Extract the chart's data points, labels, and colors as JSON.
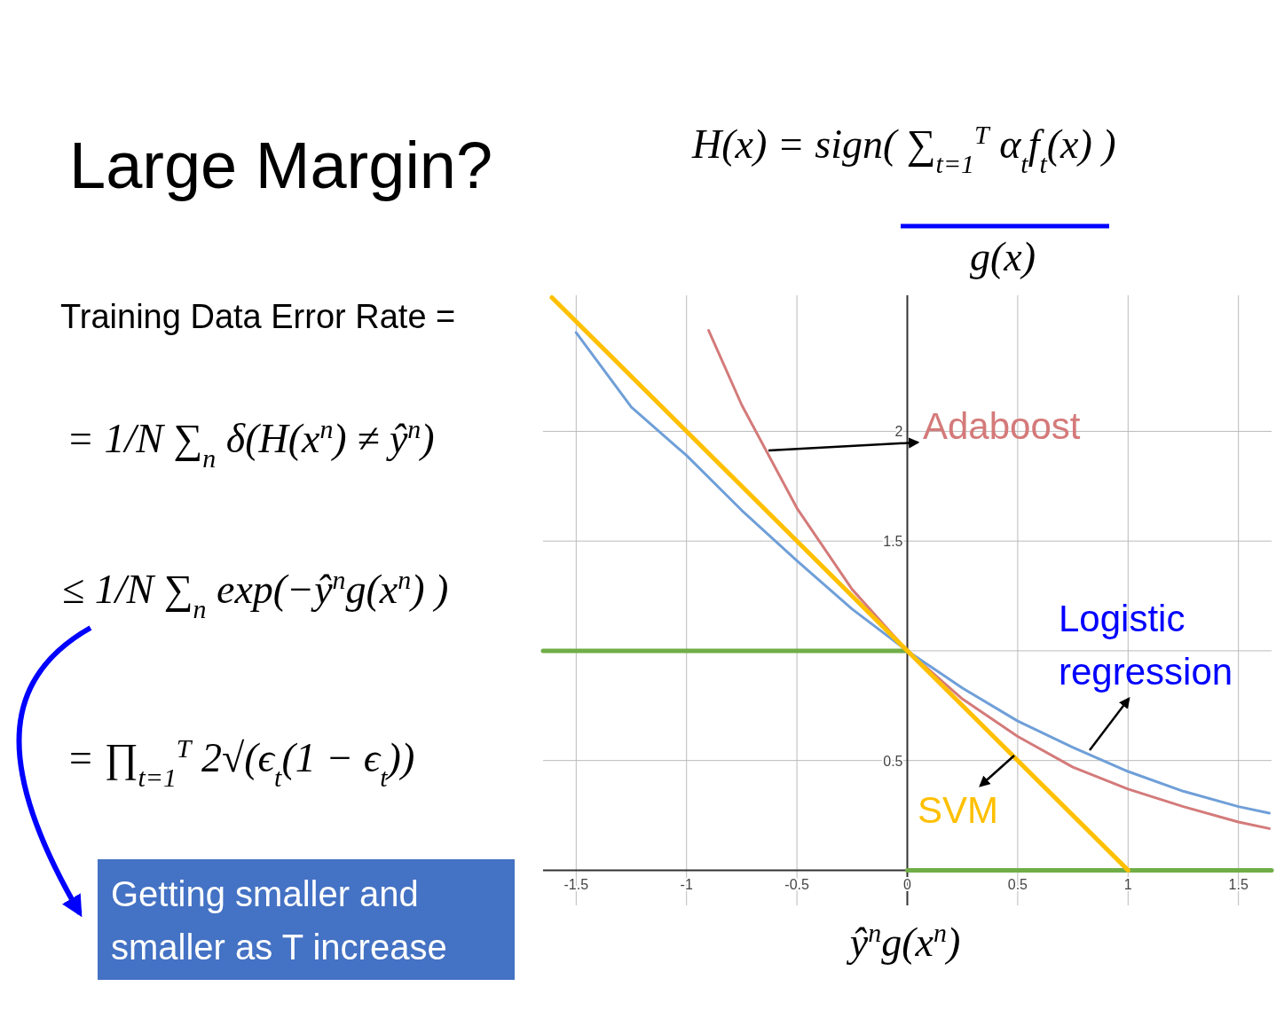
{
  "chart_data": {
    "type": "line",
    "title": "Large Margin?",
    "xlabel": "ŷ$^{n}$g(x$^{n}$)",
    "xlim": [
      -1.65,
      1.65
    ],
    "ylim": [
      -0.16,
      2.62
    ],
    "xticks": [
      -1.5,
      -1,
      -0.5,
      0,
      0.5,
      1,
      1.5
    ],
    "yticks": [
      0.5,
      {
        "value": 1,
        "label": null
      },
      1.5,
      2
    ],
    "grid": true,
    "annotations": [
      "H(x) = sign( ∑$_{t=1}$$^{T}$ α$_{t}$f$_{t}$(x) )",
      "g(x)",
      "Training Data Error Rate =",
      "= 1/N ∑$_{n}$ δ(H(x$^{n}$) ≠ ŷ$^{n}$)",
      "≤ 1/N ∑$_{n}$ exp(−ŷ$^{n}$g(x$^{n}$) )",
      "= ∏$_{t=1}$$^{T}$ 2√(ϵ$_{t}$(1 − ϵ$_{t}$))",
      "Getting smaller and smaller as T increase"
    ],
    "series": [
      {
        "color": "#70ad47",
        "x": [
          -1.65,
          0
        ],
        "values": [
          1,
          1
        ]
      },
      {
        "color": "#70ad47",
        "x": [
          0,
          1.65
        ],
        "values": [
          0,
          0
        ]
      },
      {
        "name": "Adaboost",
        "color": "#d47a7a",
        "x": [
          -0.9,
          -0.75,
          -0.5,
          -0.25,
          0,
          0.25,
          0.5,
          0.75,
          1,
          1.25,
          1.5,
          1.64
        ],
        "values": [
          2.46,
          2.12,
          1.65,
          1.28,
          1,
          0.78,
          0.61,
          0.47,
          0.37,
          0.29,
          0.22,
          0.19
        ]
      },
      {
        "name": "Logistic regression",
        "color": "#6f9fd8",
        "x": [
          -1.5,
          -1.25,
          -1,
          -0.75,
          -0.5,
          -0.25,
          0,
          0.25,
          0.5,
          0.75,
          1,
          1.25,
          1.5,
          1.64
        ],
        "values": [
          2.45,
          2.11,
          1.89,
          1.64,
          1.41,
          1.19,
          1,
          0.83,
          0.68,
          0.56,
          0.45,
          0.36,
          0.29,
          0.26
        ]
      },
      {
        "name": "SVM",
        "color": "#ffc000",
        "x": [
          -1.61,
          1
        ],
        "values": [
          2.61,
          0
        ]
      }
    ]
  }
}
